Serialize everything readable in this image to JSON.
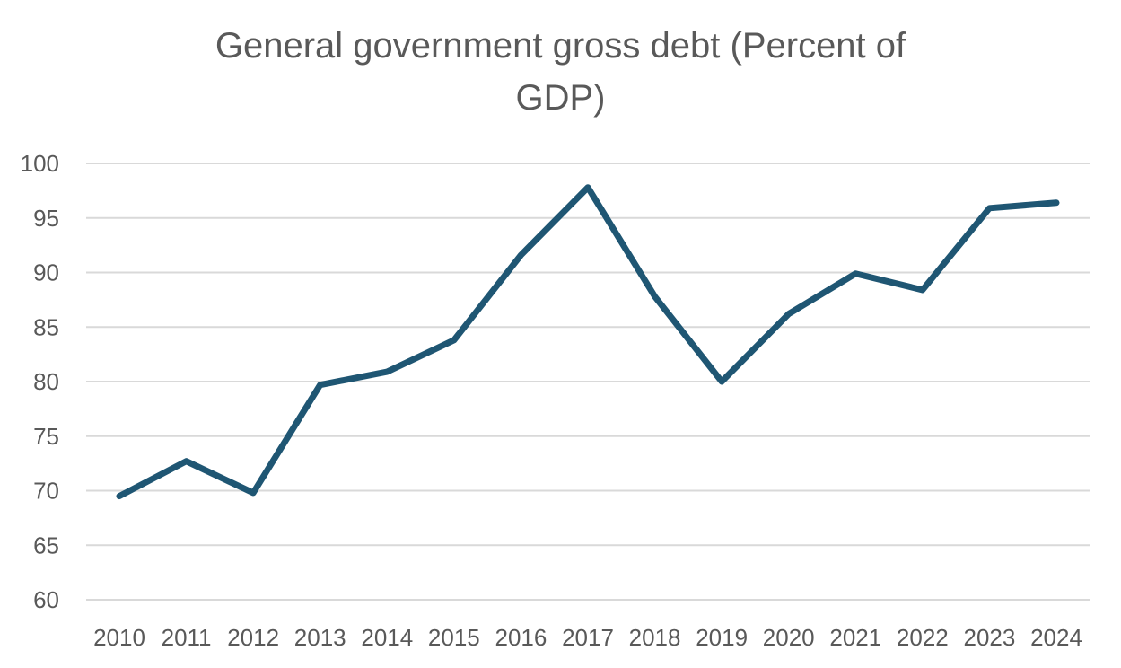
{
  "chart_data": {
    "type": "line",
    "title_lines": [
      "General government gross debt (Percent of",
      "GDP)"
    ],
    "categories": [
      "2010",
      "2011",
      "2012",
      "2013",
      "2014",
      "2015",
      "2016",
      "2017",
      "2018",
      "2019",
      "2020",
      "2021",
      "2022",
      "2023",
      "2024"
    ],
    "series": [
      {
        "values": [
          69.5,
          72.7,
          69.8,
          79.7,
          80.9,
          83.8,
          91.6,
          97.8,
          87.8,
          80.0,
          86.2,
          89.9,
          88.4,
          95.9,
          96.4
        ],
        "color": "#1F5673"
      }
    ],
    "ylim": [
      60,
      100
    ],
    "yticks": [
      60,
      65,
      70,
      75,
      80,
      85,
      90,
      95,
      100
    ],
    "grid": true,
    "legend": "none",
    "colors": {
      "line": "#1F5673",
      "grid": "#D9D9D9",
      "text": "#595959"
    }
  }
}
